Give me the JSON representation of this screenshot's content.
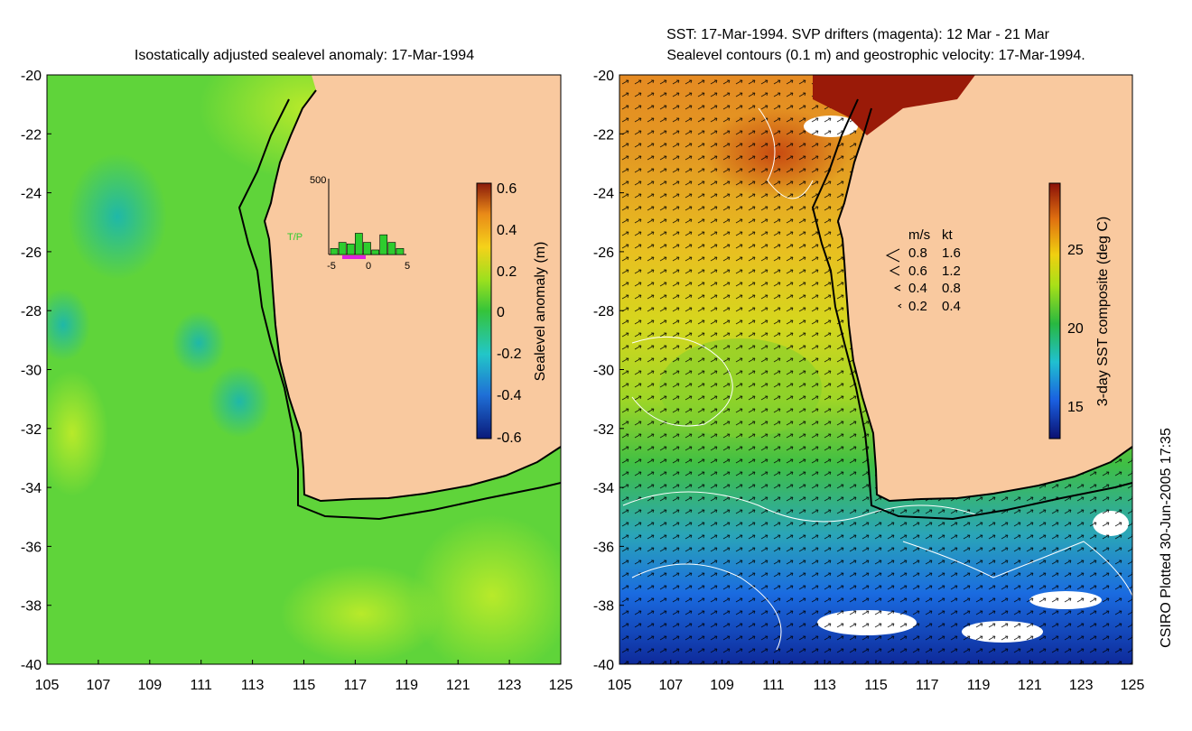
{
  "left_panel": {
    "title": "Isostatically adjusted sealevel anomaly: 17-Mar-1994",
    "colorbar": {
      "label": "Sealevel anomaly (m)",
      "ticks": [
        "0.6",
        "0.4",
        "0.2",
        "0",
        "-0.2",
        "-0.4",
        "-0.6"
      ]
    },
    "inset": {
      "label": "T/P",
      "y_tick": "500",
      "x_ticks": [
        "-5",
        "0",
        "5"
      ],
      "bar_values": [
        40,
        80,
        70,
        140,
        80,
        30,
        130,
        80,
        40
      ]
    }
  },
  "right_panel": {
    "title_line1": "SST: 17-Mar-1994. SVP drifters (magenta): 12 Mar - 21 Mar",
    "title_line2": "Sealevel contours (0.1 m) and geostrophic velocity: 17-Mar-1994.",
    "colorbar": {
      "label": "3-day SST composite (deg C)",
      "ticks": [
        "25",
        "20",
        "15"
      ]
    },
    "velocity_legend": {
      "header_ms": "m/s",
      "header_kt": "kt",
      "rows": [
        {
          "ms": "0.8",
          "kt": "1.6"
        },
        {
          "ms": "0.6",
          "kt": "1.2"
        },
        {
          "ms": "0.4",
          "kt": "0.8"
        },
        {
          "ms": "0.2",
          "kt": "0.4"
        }
      ]
    }
  },
  "axes": {
    "y_ticks": [
      "-20",
      "-22",
      "-24",
      "-26",
      "-28",
      "-30",
      "-32",
      "-34",
      "-36",
      "-38",
      "-40"
    ],
    "x_ticks": [
      "105",
      "107",
      "109",
      "111",
      "113",
      "115",
      "117",
      "119",
      "121",
      "123",
      "125"
    ]
  },
  "footer": {
    "credit": "CSIRO Plotted 30-Jun-2005 17:35"
  },
  "colors": {
    "land": "#f9c99f",
    "ocean_left": "#5cd63c",
    "coast": "#000000"
  }
}
